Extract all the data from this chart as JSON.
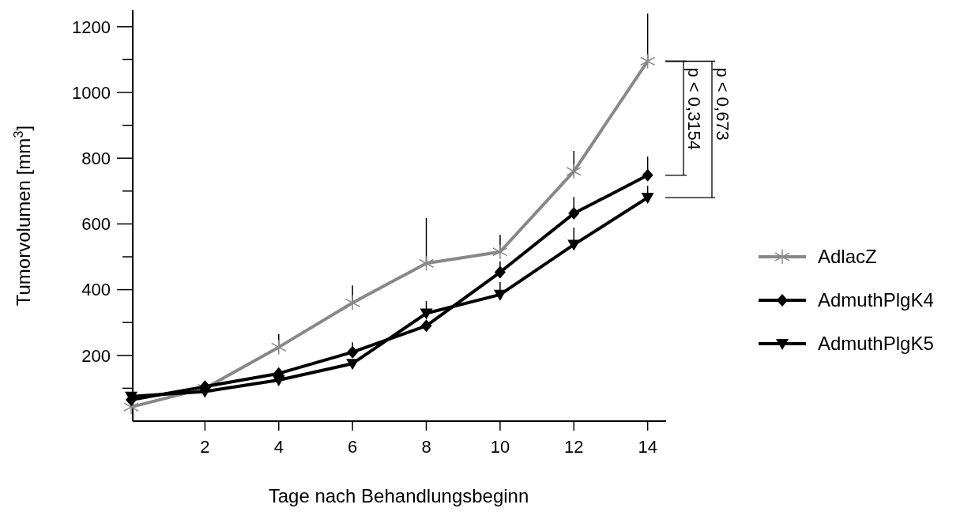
{
  "chart_data": {
    "type": "line",
    "xlabel": "Tage nach Behandlungsbeginn",
    "ylabel": "Tumorvolumen [mm$^{3}$]",
    "x": [
      0,
      2,
      4,
      6,
      8,
      10,
      12,
      14
    ],
    "xlim": [
      0,
      14.5
    ],
    "xticks": [
      2,
      4,
      6,
      8,
      10,
      12,
      14
    ],
    "ylim": [
      0,
      1250
    ],
    "yticks": [
      {
        "value": 100,
        "label": null
      },
      200,
      {
        "value": 300,
        "label": null
      },
      400,
      {
        "value": 500,
        "label": null
      },
      600,
      {
        "value": 700,
        "label": null
      },
      800,
      {
        "value": 900,
        "label": null
      },
      1000,
      {
        "value": 1100,
        "label": null
      },
      1200
    ],
    "grid": false,
    "legend": "right",
    "line_style": "solid",
    "series": [
      {
        "name": "AdlacZ",
        "color": "#888888",
        "marker": "cross",
        "values": [
          43,
          100,
          225,
          360,
          480,
          515,
          760,
          1095
        ],
        "errors": [
          null,
          null,
          [
            225,
            265
          ],
          [
            360,
            413
          ],
          [
            480,
            618
          ],
          [
            515,
            567
          ],
          [
            760,
            822
          ],
          [
            1095,
            1240
          ]
        ]
      },
      {
        "name": "AdmuthPlgK4",
        "color": "#000000",
        "marker": "diamond",
        "values": [
          65,
          105,
          145,
          210,
          290,
          453,
          632,
          748
        ],
        "errors": [
          null,
          null,
          null,
          [
            210,
            240
          ],
          null,
          [
            453,
            486
          ],
          [
            632,
            682
          ],
          [
            748,
            805
          ]
        ]
      },
      {
        "name": "AdmuthPlgK5",
        "color": "#000000",
        "marker": "triangle",
        "values": [
          75,
          90,
          125,
          175,
          328,
          385,
          537,
          680
        ],
        "errors": [
          null,
          null,
          null,
          null,
          [
            328,
            365
          ],
          [
            385,
            423
          ],
          [
            537,
            589
          ],
          [
            680,
            716
          ]
        ]
      }
    ],
    "annotations": [
      "p < 0,3154",
      "p < 0,673"
    ]
  }
}
